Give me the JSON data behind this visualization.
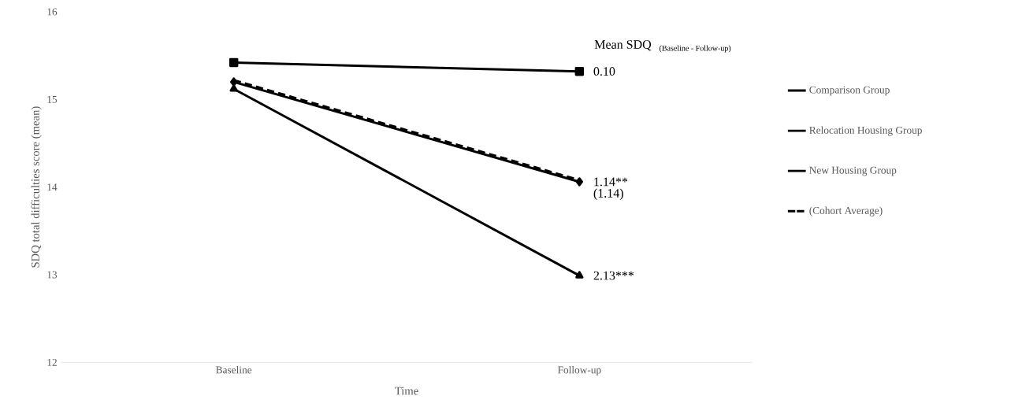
{
  "chart_data": {
    "type": "line",
    "xlabel": "Time",
    "ylabel": "SDQ total difficulties score (mean)",
    "categories": [
      "Baseline",
      "Follow-up"
    ],
    "series": [
      {
        "name": "Comparison Group",
        "color": "#000000",
        "marker": "square",
        "values": [
          15.42,
          15.32
        ]
      },
      {
        "name": "Relocation Housing Group",
        "color": "#000000",
        "marker": "diamond",
        "values": [
          15.2,
          14.06
        ]
      },
      {
        "name": "New Housing Group",
        "color": "#000000",
        "marker": "triangle",
        "values": [
          15.12,
          12.99
        ]
      },
      {
        "name": "(Cohort Average)",
        "color": "#000000",
        "marker": "none",
        "line_style": "dashed",
        "values": [
          15.22,
          14.08
        ]
      }
    ],
    "ylim": [
      12,
      16
    ],
    "yticks": [
      12,
      13,
      14,
      15,
      16
    ],
    "grid": false,
    "legend": "right",
    "annotations": [
      "Mean SDQ",
      "(Baseline - Follow-up)",
      {
        "text": "0.10",
        "x": "Follow-up",
        "y": 15.32
      },
      {
        "text": "1.14**",
        "x": "Follow-up",
        "y": 14.06
      },
      {
        "text": "(1.14)",
        "x": "Follow-up",
        "y": 14.08
      },
      {
        "text": "2.13***",
        "x": "Follow-up",
        "y": 12.99
      }
    ]
  }
}
